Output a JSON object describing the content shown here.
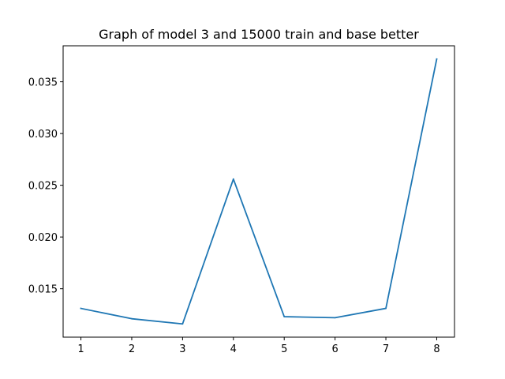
{
  "chart_data": {
    "type": "line",
    "title": "Graph of model 3 and 15000 train and base better",
    "xlabel": "",
    "ylabel": "",
    "x": [
      1,
      2,
      3,
      4,
      5,
      6,
      7,
      8
    ],
    "series": [
      {
        "values": [
          0.0131,
          0.0121,
          0.0116,
          0.0256,
          0.0123,
          0.0122,
          0.0131,
          0.0372
        ],
        "color": "#1f77b4"
      }
    ],
    "x_ticks": [
      "1",
      "2",
      "3",
      "4",
      "5",
      "6",
      "7",
      "8"
    ],
    "y_ticks": [
      "0.015",
      "0.020",
      "0.025",
      "0.030",
      "0.035"
    ],
    "y_tick_values": [
      0.015,
      0.02,
      0.025,
      0.03,
      0.035
    ],
    "xlim": [
      0.65,
      8.35
    ],
    "ylim": [
      0.01032,
      0.03848
    ],
    "grid": false,
    "legend": "none"
  }
}
